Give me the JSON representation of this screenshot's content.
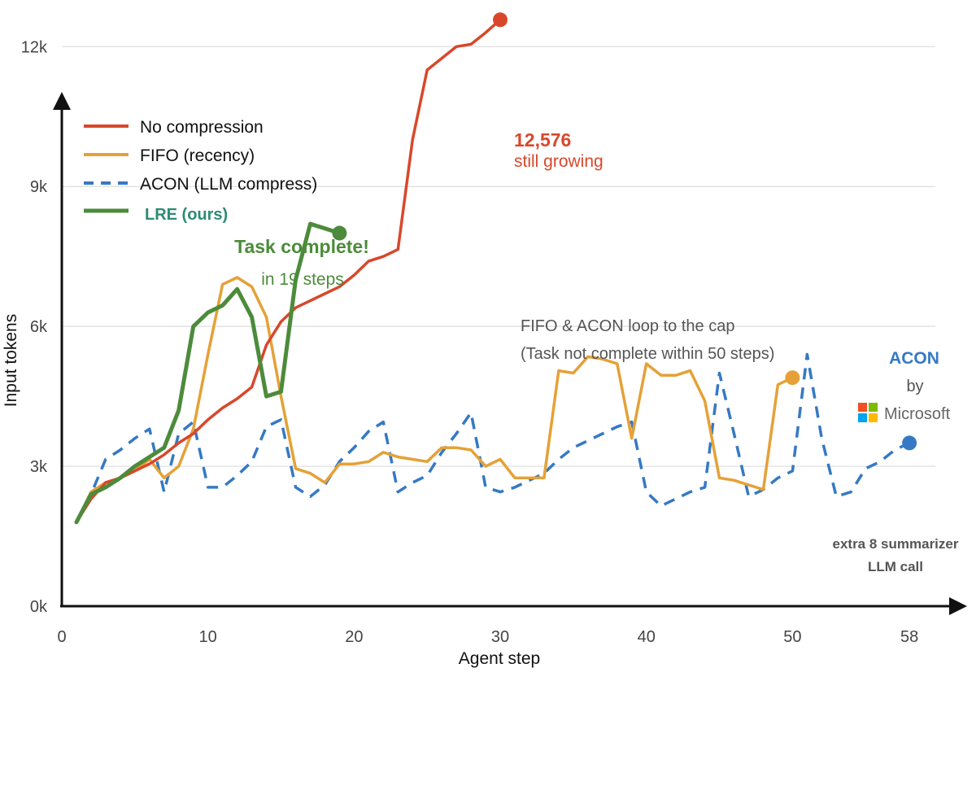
{
  "chart_data": {
    "type": "line",
    "xlabel": "Agent step",
    "ylabel": "Input tokens",
    "xlim": [
      0,
      62
    ],
    "ylim": [
      0,
      13000
    ],
    "x_ticks": [
      {
        "value": 0,
        "label": "0"
      },
      {
        "value": 10,
        "label": "10"
      },
      {
        "value": 20,
        "label": "20"
      },
      {
        "value": 30,
        "label": "30"
      },
      {
        "value": 40,
        "label": "40"
      },
      {
        "value": 50,
        "label": "50"
      },
      {
        "value": 58,
        "label": "58"
      }
    ],
    "y_ticks": [
      {
        "value": 0,
        "label": "0k"
      },
      {
        "value": 3000,
        "label": "3k"
      },
      {
        "value": 6000,
        "label": "6k"
      },
      {
        "value": 9000,
        "label": "9k"
      },
      {
        "value": 12000,
        "label": "12k"
      }
    ],
    "grid": "horizontal",
    "legend_position": "top-left",
    "series": [
      {
        "name": "No compression",
        "color": "#d9472b",
        "style": "solid",
        "end_marker": true,
        "x": [
          1,
          2,
          3,
          4,
          5,
          6,
          7,
          8,
          9,
          10,
          11,
          12,
          13,
          14,
          15,
          16,
          17,
          18,
          19,
          20,
          21,
          22,
          23,
          24,
          25,
          26,
          27,
          28,
          29,
          30
        ],
        "y": [
          1800,
          2300,
          2650,
          2750,
          2900,
          3050,
          3250,
          3500,
          3700,
          4000,
          4250,
          4450,
          4700,
          5600,
          6100,
          6400,
          6550,
          6700,
          6850,
          7100,
          7400,
          7500,
          7650,
          10000,
          11500,
          11750,
          12000,
          12050,
          12300,
          12576
        ]
      },
      {
        "name": "FIFO (recency)",
        "color": "#e5a137",
        "style": "solid",
        "end_marker": true,
        "x": [
          1,
          2,
          3,
          4,
          5,
          6,
          7,
          8,
          9,
          10,
          11,
          12,
          13,
          14,
          15,
          16,
          17,
          18,
          19,
          20,
          21,
          22,
          23,
          24,
          25,
          26,
          27,
          28,
          29,
          30,
          31,
          32,
          33,
          34,
          35,
          36,
          37,
          38,
          39,
          40,
          41,
          42,
          43,
          44,
          45,
          46,
          47,
          48,
          49,
          50
        ],
        "y": [
          1800,
          2450,
          2650,
          2750,
          2900,
          3150,
          2750,
          3000,
          3800,
          5400,
          6900,
          7050,
          6850,
          6200,
          4500,
          2950,
          2850,
          2650,
          3050,
          3050,
          3100,
          3300,
          3200,
          3150,
          3100,
          3400,
          3400,
          3350,
          3000,
          3150,
          2750,
          2750,
          2750,
          5050,
          5000,
          5350,
          5300,
          5200,
          3600,
          5200,
          4950,
          4950,
          5050,
          4400,
          2750,
          2700,
          2600,
          2500,
          4750,
          4900
        ]
      },
      {
        "name": "ACON (LLM compress)",
        "color": "#3579c4",
        "style": "dashed",
        "end_marker": true,
        "x": [
          1,
          2,
          3,
          4,
          5,
          6,
          7,
          8,
          9,
          10,
          11,
          12,
          13,
          14,
          15,
          16,
          17,
          18,
          19,
          20,
          21,
          22,
          23,
          24,
          25,
          26,
          27,
          28,
          29,
          30,
          31,
          32,
          33,
          34,
          35,
          36,
          37,
          38,
          39,
          40,
          41,
          42,
          43,
          44,
          45,
          46,
          47,
          48,
          49,
          50,
          51,
          52,
          53,
          54,
          55,
          56,
          57,
          58
        ],
        "y": [
          1800,
          2400,
          3150,
          3350,
          3600,
          3800,
          2450,
          3700,
          3950,
          2550,
          2550,
          2800,
          3100,
          3850,
          4000,
          2550,
          2350,
          2600,
          3100,
          3400,
          3750,
          3950,
          2450,
          2650,
          2800,
          3300,
          3700,
          4150,
          2550,
          2450,
          2550,
          2700,
          2850,
          3150,
          3400,
          3550,
          3700,
          3850,
          3950,
          2450,
          2150,
          2300,
          2450,
          2550,
          5000,
          3700,
          2350,
          2500,
          2750,
          2900,
          5400,
          3600,
          2350,
          2450,
          2950,
          3100,
          3350,
          3500
        ]
      },
      {
        "name": "LRE (ours)",
        "color": "#4c8b3b",
        "style": "solid",
        "end_marker": true,
        "x": [
          1,
          2,
          3,
          4,
          5,
          6,
          7,
          8,
          9,
          10,
          11,
          12,
          13,
          14,
          15,
          16,
          17,
          18,
          19
        ],
        "y": [
          1800,
          2400,
          2550,
          2750,
          3000,
          3200,
          3400,
          4200,
          6000,
          6300,
          6450,
          6800,
          6200,
          4500,
          4600,
          7000,
          8200,
          8100,
          8000
        ]
      }
    ],
    "annotations": {
      "task_complete_title": "Task complete!",
      "task_complete_sub": "in 19 steps",
      "no_comp_value": "12,576",
      "no_comp_sub": "still growing",
      "loop_line1": "FIFO & ACON loop to the cap",
      "loop_line2": "(Task not complete within 50 steps)",
      "acon_brand": "ACON",
      "acon_by": "by",
      "acon_company": "Microsoft",
      "extra_line1": "extra 8 summarizer",
      "extra_line2": "LLM call"
    }
  }
}
